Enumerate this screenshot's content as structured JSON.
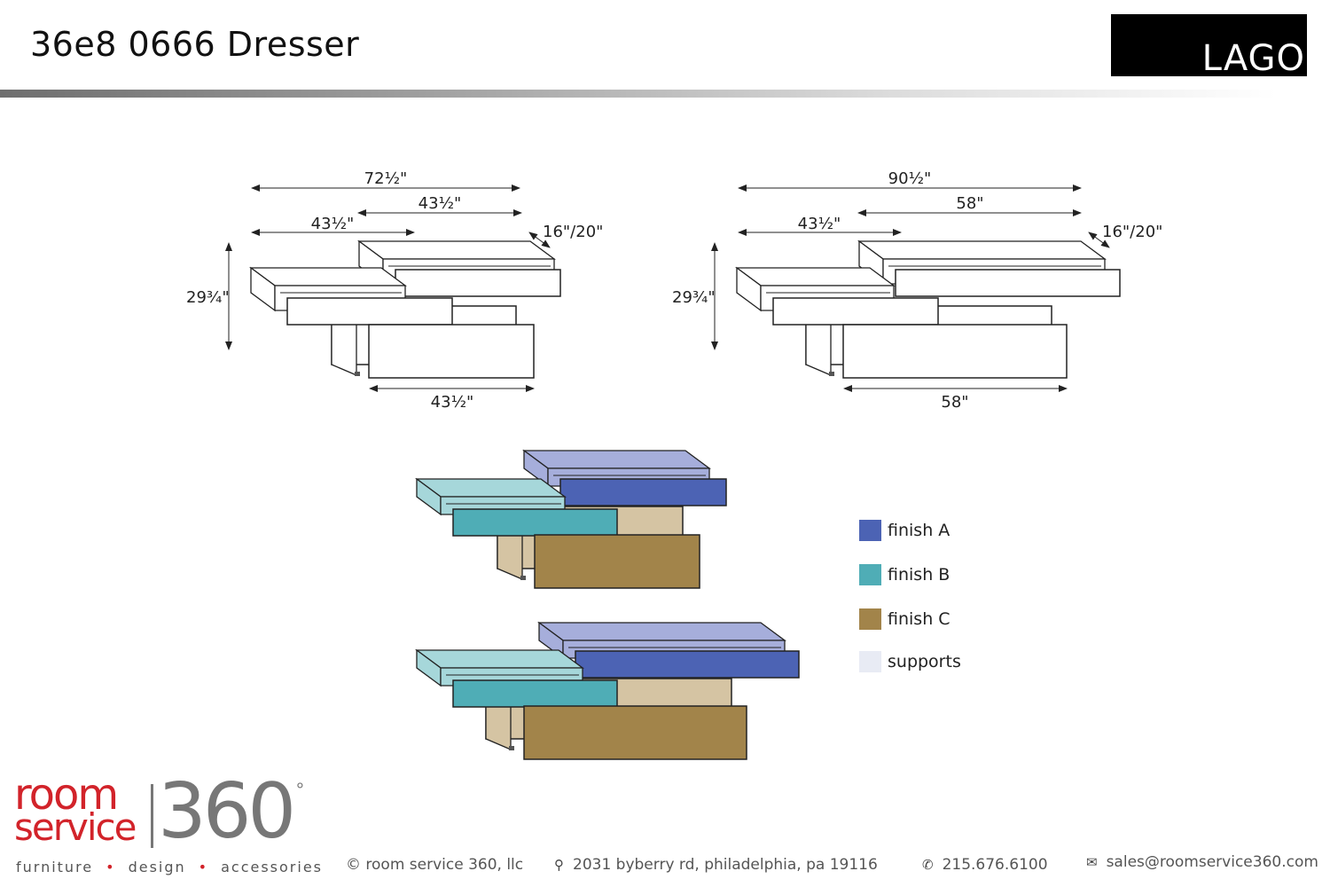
{
  "header": {
    "title": "36e8 0666 Dresser",
    "brand_logo_text": "LAGO"
  },
  "drawing_1": {
    "dims": {
      "overall_width": "72½\"",
      "top_width": "43½\"",
      "middle_width": "43½\"",
      "depth": "16\"/20\"",
      "height": "29¾\"",
      "bottom_width": "43½\""
    }
  },
  "drawing_2": {
    "dims": {
      "overall_width": "90½\"",
      "top_width": "58\"",
      "middle_width": "43½\"",
      "depth": "16\"/20\"",
      "height": "29¾\"",
      "bottom_width": "58\""
    }
  },
  "legend": {
    "items": [
      {
        "label": "finish A",
        "color": "#4c63b4"
      },
      {
        "label": "finish B",
        "color": "#4fadb6"
      },
      {
        "label": "finish C",
        "color": "#a2844a"
      },
      {
        "label": "supports",
        "color": "#e8ebf4"
      }
    ]
  },
  "colors": {
    "finish_a_light": "#a6aedb",
    "finish_a": "#4c63b4",
    "finish_b_light": "#a6d7da",
    "finish_b": "#4fadb6",
    "finish_c_light": "#d5c4a3",
    "finish_c": "#a2844a",
    "outline": "#222222",
    "logo_red": "#d2232a",
    "logo_gray": "#777777"
  },
  "footer": {
    "logo_text": {
      "room": "room",
      "service": "service",
      "number": "360",
      "degree": "°"
    },
    "tagline": [
      "furniture",
      "design",
      "accessories"
    ],
    "tagline_separator": "•",
    "copyright": "© room service 360, llc",
    "address": "2031 byberry rd, philadelphia, pa 19116",
    "phone": "215.676.6100",
    "email": "sales@roomservice360.com",
    "icons": {
      "address": "map-pin-icon",
      "phone": "phone-icon",
      "email": "envelope-icon"
    }
  }
}
